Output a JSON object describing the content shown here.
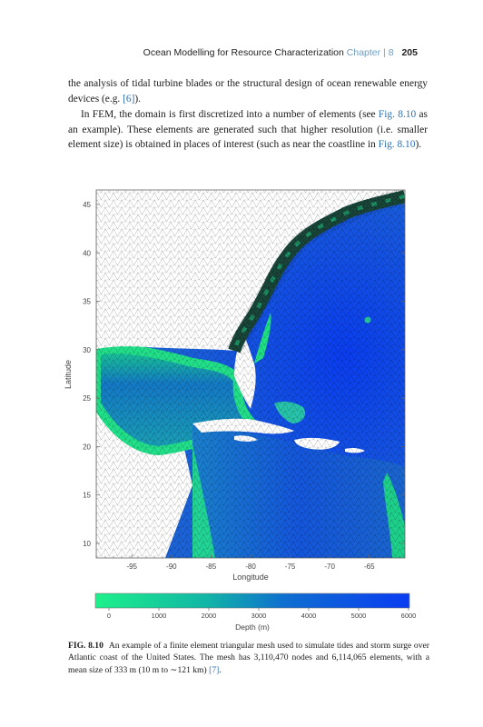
{
  "running_head": {
    "title": "Ocean Modelling for Resource Characterization",
    "chapter": "Chapter | 8",
    "page_number": "205"
  },
  "paragraph1": {
    "text_a": "the analysis of tidal turbine blades or the structural design of ocean renewable energy devices (e.g. ",
    "ref_a": "[6]",
    "text_b": ")."
  },
  "paragraph2": {
    "text_a": "In FEM, the domain is first discretized into a number of elements (see ",
    "ref_a": "Fig. 8.10",
    "text_b": " as an example). These elements are generated such that higher resolution (i.e. smaller element size) is obtained in places of interest (such as near the coastline in ",
    "ref_b": "Fig. 8.10",
    "text_c": ")."
  },
  "chart_data": {
    "type": "heatmap",
    "xlabel": "Longitude",
    "ylabel": "Latitude",
    "xlim": [
      -99.5,
      -60.5
    ],
    "ylim": [
      8.5,
      46.5
    ],
    "xticks": [
      "-95",
      "-90",
      "-85",
      "-80",
      "-75",
      "-70",
      "-65"
    ],
    "yticks": [
      "45",
      "40",
      "35",
      "30",
      "25",
      "20",
      "15",
      "10"
    ],
    "colorbar": {
      "label": "Depth (m)",
      "range": [
        0,
        6000
      ],
      "ticks": [
        "0",
        "1000",
        "2000",
        "3000",
        "4000",
        "5000",
        "6000"
      ],
      "colors": [
        "#1ef08a",
        "#0a3cf2"
      ]
    },
    "land_color": "#ffffff",
    "mesh": "finite element triangular mesh"
  },
  "caption": {
    "label": "FIG. 8.10",
    "text_a": "An example of a finite element triangular mesh used to simulate tides and storm surge over Atlantic coast of the United States. The mesh has 3,110,470 nodes and 6,114,065 elements, with a mean size of 333 m (10 m to ∼121 km) ",
    "ref": "[7]",
    "text_b": "."
  }
}
